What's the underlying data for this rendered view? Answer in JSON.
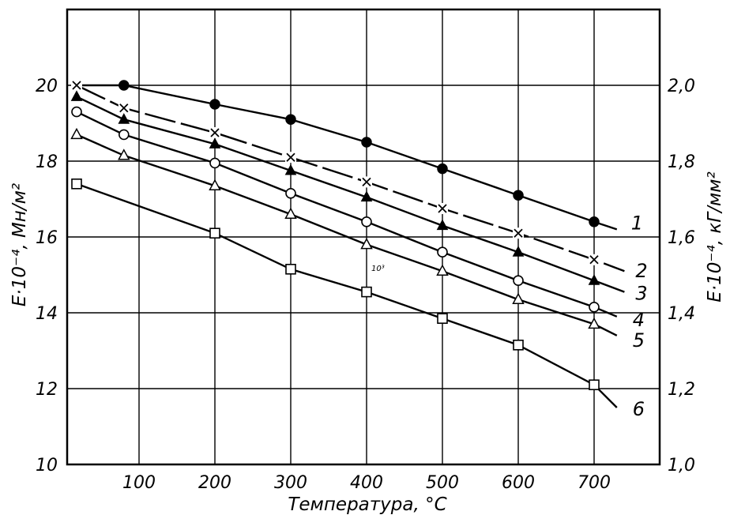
{
  "chart_data": {
    "type": "line",
    "title": "",
    "xlabel": "Температура, °C",
    "ylabel": "E·10⁻⁴, Мн/м²",
    "ylabel_right": "E·10⁻⁴, кГ/мм²",
    "xlim": [
      0,
      800
    ],
    "ylim": [
      10,
      22
    ],
    "ylim_right": [
      1.0,
      2.2
    ],
    "x_ticks": [
      100,
      200,
      300,
      400,
      500,
      600,
      700
    ],
    "x_tick_labels": [
      "100",
      "200",
      "300",
      "400",
      "500",
      "600",
      "700"
    ],
    "y_ticks": [
      10,
      12,
      14,
      16,
      18,
      20
    ],
    "y_tick_labels": [
      "10",
      "12",
      "14",
      "16",
      "18",
      "20"
    ],
    "y_right_ticks": [
      1.0,
      1.2,
      1.4,
      1.6,
      1.8,
      2.0
    ],
    "y_right_tick_labels": [
      "1,0",
      "1,2",
      "1,4",
      "1,6",
      "1,8",
      "2,0"
    ],
    "grid": true,
    "series": [
      {
        "label": "1",
        "marker": "filled-circle",
        "line": "solid",
        "x": [
          0,
          80,
          200,
          300,
          400,
          500,
          600,
          700
        ],
        "y": [
          20.0,
          20.0,
          19.5,
          19.1,
          18.5,
          17.8,
          17.1,
          16.4
        ],
        "end_x": 730,
        "end_y": 16.2
      },
      {
        "label": "2",
        "marker": "cross",
        "line": "dashed",
        "x": [
          0,
          80,
          200,
          300,
          400,
          500,
          600,
          700
        ],
        "y": [
          20.0,
          19.4,
          18.75,
          18.1,
          17.45,
          16.75,
          16.1,
          15.4
        ],
        "end_x": 740,
        "end_y": 15.1
      },
      {
        "label": "3",
        "marker": "filled-triangle",
        "line": "solid",
        "x": [
          0,
          80,
          200,
          300,
          400,
          500,
          600,
          700
        ],
        "y": [
          19.7,
          19.1,
          18.45,
          17.75,
          17.05,
          16.3,
          15.6,
          14.85
        ],
        "end_x": 740,
        "end_y": 14.55
      },
      {
        "label": "4",
        "marker": "open-circle",
        "line": "solid",
        "x": [
          0,
          80,
          200,
          300,
          400,
          500,
          600,
          700
        ],
        "y": [
          19.3,
          18.7,
          17.95,
          17.15,
          16.4,
          15.6,
          14.85,
          14.15
        ],
        "end_x": 730,
        "end_y": 13.9
      },
      {
        "label": "5",
        "marker": "open-triangle",
        "line": "solid",
        "x": [
          0,
          80,
          200,
          300,
          400,
          500,
          600,
          700
        ],
        "y": [
          18.7,
          18.15,
          17.35,
          16.6,
          15.8,
          15.1,
          14.35,
          13.7
        ],
        "end_x": 730,
        "end_y": 13.4
      },
      {
        "label": "6",
        "marker": "open-square",
        "line": "solid",
        "x": [
          0,
          200,
          300,
          400,
          500,
          600,
          700
        ],
        "y": [
          17.4,
          16.1,
          15.15,
          14.55,
          13.85,
          13.15,
          12.1
        ],
        "end_x": 730,
        "end_y": 11.5
      }
    ],
    "annotation": "10³"
  }
}
